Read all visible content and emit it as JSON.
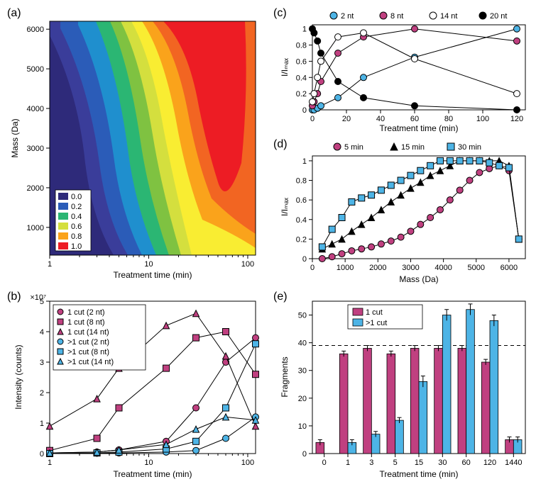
{
  "panel_a": {
    "label": "(a)",
    "type": "heatmap",
    "xlabel": "Treatment time (min)",
    "ylabel": "Mass (Da)",
    "xscale": "log",
    "xlim": [
      1,
      120
    ],
    "ylim": [
      300,
      6200
    ],
    "xticks": [
      1,
      10,
      100
    ],
    "yticks": [
      1000,
      2000,
      3000,
      4000,
      5000,
      6000
    ],
    "colorbar_values": [
      "0.0",
      "0.2",
      "0.4",
      "0.6",
      "0.8",
      "1.0"
    ],
    "colors": [
      "#2e2a7a",
      "#3a3d9a",
      "#2b5cb8",
      "#1f8fce",
      "#2bb673",
      "#7fc241",
      "#d4df3e",
      "#f9ed32",
      "#faa31b",
      "#f26522",
      "#ed1c24"
    ]
  },
  "panel_b": {
    "label": "(b)",
    "type": "line",
    "xlabel": "Treatment time (min)",
    "ylabel": "Intensity (counts)",
    "ymultiplier": "×10⁷",
    "xscale": "log",
    "xlim": [
      1,
      120
    ],
    "ylim": [
      0,
      5
    ],
    "xticks": [
      1,
      10,
      100
    ],
    "yticks": [
      0,
      1,
      2,
      3,
      4,
      5
    ],
    "series": [
      {
        "label": "1 cut (2 nt)",
        "marker": "circle",
        "fill": "#c04080",
        "x": [
          1,
          3,
          5,
          15,
          30,
          60,
          120
        ],
        "y": [
          0.02,
          0.05,
          0.12,
          0.4,
          1.5,
          3.0,
          3.8
        ]
      },
      {
        "label": "1 cut (8 nt)",
        "marker": "square",
        "fill": "#c04080",
        "x": [
          1,
          3,
          5,
          15,
          30,
          60,
          120
        ],
        "y": [
          0.1,
          0.5,
          1.5,
          2.8,
          3.8,
          4.0,
          2.6
        ]
      },
      {
        "label": "1 cut (14 nt)",
        "marker": "triangle",
        "fill": "#c04080",
        "x": [
          1,
          3,
          5,
          15,
          30,
          60,
          120
        ],
        "y": [
          0.9,
          1.8,
          2.8,
          4.2,
          4.6,
          3.2,
          0.9
        ]
      },
      {
        "label": ">1 cut (2 nt)",
        "marker": "circle",
        "fill": "#4db4e6",
        "x": [
          1,
          3,
          5,
          15,
          30,
          60,
          120
        ],
        "y": [
          0.0,
          0.01,
          0.02,
          0.05,
          0.1,
          0.5,
          1.2
        ]
      },
      {
        "label": ">1 cut (8 nt)",
        "marker": "square",
        "fill": "#4db4e6",
        "x": [
          1,
          3,
          5,
          15,
          30,
          60,
          120
        ],
        "y": [
          0.0,
          0.02,
          0.05,
          0.15,
          0.4,
          1.5,
          3.6
        ]
      },
      {
        "label": ">1 cut (14 nt)",
        "marker": "triangle",
        "fill": "#4db4e6",
        "x": [
          1,
          3,
          5,
          15,
          30,
          60,
          120
        ],
        "y": [
          0.02,
          0.05,
          0.12,
          0.3,
          0.8,
          1.2,
          1.1
        ]
      }
    ]
  },
  "panel_c": {
    "label": "(c)",
    "type": "line",
    "xlabel": "Treatment time (min)",
    "ylabel": "I/Iₘₐₓ",
    "xlim": [
      0,
      125
    ],
    "ylim": [
      0,
      1.05
    ],
    "xticks": [
      0,
      20,
      40,
      60,
      80,
      100,
      120
    ],
    "yticks": [
      0,
      0.2,
      0.4,
      0.6,
      0.8,
      1
    ],
    "series": [
      {
        "label": "2 nt",
        "marker": "circle",
        "fill": "#4db4e6",
        "stroke": "#000",
        "x": [
          0,
          1,
          3,
          5,
          15,
          30,
          60,
          120
        ],
        "y": [
          0.0,
          0.0,
          0.02,
          0.05,
          0.15,
          0.4,
          0.65,
          1.0
        ]
      },
      {
        "label": "8 nt",
        "marker": "circle",
        "fill": "#c04080",
        "stroke": "#000",
        "x": [
          0,
          1,
          3,
          5,
          15,
          30,
          60,
          120
        ],
        "y": [
          0.05,
          0.1,
          0.2,
          0.35,
          0.7,
          0.9,
          1.0,
          0.85
        ]
      },
      {
        "label": "14 nt",
        "marker": "circle",
        "fill": "#ffffff",
        "stroke": "#000",
        "x": [
          0,
          1,
          3,
          5,
          15,
          30,
          60,
          120
        ],
        "y": [
          0.1,
          0.2,
          0.4,
          0.6,
          0.9,
          0.95,
          0.63,
          0.2
        ]
      },
      {
        "label": "20 nt",
        "marker": "circle",
        "fill": "#000000",
        "stroke": "#000",
        "x": [
          0,
          1,
          3,
          5,
          15,
          30,
          60,
          120
        ],
        "y": [
          1.0,
          0.95,
          0.85,
          0.7,
          0.35,
          0.15,
          0.05,
          0.0
        ]
      }
    ]
  },
  "panel_d": {
    "label": "(d)",
    "type": "line",
    "xlabel": "Mass (Da)",
    "ylabel": "I/Iₘₐₓ",
    "xlim": [
      0,
      6500
    ],
    "ylim": [
      0,
      1.05
    ],
    "xticks": [
      0,
      1000,
      2000,
      3000,
      4000,
      5000,
      6000
    ],
    "yticks": [
      0,
      0.2,
      0.4,
      0.6,
      0.8,
      1
    ],
    "series": [
      {
        "label": "5 min",
        "marker": "circle",
        "fill": "#c04080",
        "x": [
          300,
          600,
          900,
          1200,
          1500,
          1800,
          2100,
          2400,
          2700,
          3000,
          3300,
          3600,
          3900,
          4200,
          4500,
          4800,
          5100,
          5400,
          5700,
          6000,
          6300
        ],
        "y": [
          0.0,
          0.02,
          0.05,
          0.08,
          0.1,
          0.12,
          0.15,
          0.18,
          0.22,
          0.28,
          0.35,
          0.42,
          0.5,
          0.6,
          0.7,
          0.8,
          0.88,
          0.92,
          0.95,
          0.9,
          0.2
        ]
      },
      {
        "label": "15 min",
        "marker": "triangle",
        "fill": "#000000",
        "x": [
          300,
          600,
          900,
          1200,
          1500,
          1800,
          2100,
          2400,
          2700,
          3000,
          3300,
          3600,
          3900,
          4200,
          4500,
          4800,
          5100,
          5400,
          5700,
          6000,
          6300
        ],
        "y": [
          0.1,
          0.15,
          0.2,
          0.28,
          0.35,
          0.42,
          0.5,
          0.58,
          0.65,
          0.72,
          0.78,
          0.85,
          0.9,
          0.95,
          1.0,
          1.0,
          1.0,
          1.0,
          1.0,
          0.95,
          0.2
        ]
      },
      {
        "label": "30 min",
        "marker": "square",
        "fill": "#4db4e6",
        "x": [
          300,
          600,
          900,
          1200,
          1500,
          1800,
          2100,
          2400,
          2700,
          3000,
          3300,
          3600,
          3900,
          4200,
          4500,
          4800,
          5100,
          5400,
          5700,
          6000,
          6300
        ],
        "y": [
          0.12,
          0.3,
          0.42,
          0.58,
          0.62,
          0.65,
          0.7,
          0.75,
          0.8,
          0.85,
          0.9,
          0.95,
          1.0,
          1.0,
          1.0,
          1.0,
          1.0,
          0.98,
          0.95,
          0.93,
          0.2
        ]
      }
    ]
  },
  "panel_e": {
    "label": "(e)",
    "type": "bar",
    "xlabel": "Treatment time (min)",
    "ylabel": "Fragments",
    "categories": [
      "0",
      "1",
      "3",
      "5",
      "15",
      "30",
      "60",
      "120",
      "1440"
    ],
    "ylim": [
      0,
      55
    ],
    "yticks": [
      0,
      10,
      20,
      30,
      40,
      50
    ],
    "dashed_line_y": 39,
    "series": [
      {
        "label": "1 cut",
        "color": "#c04080",
        "values": [
          4,
          36,
          38,
          36,
          38,
          38,
          38,
          33,
          5
        ],
        "err": [
          1,
          1,
          1,
          1,
          1,
          1,
          1,
          1,
          1
        ]
      },
      {
        "label": ">1 cut",
        "color": "#4db4e6",
        "values": [
          0,
          4,
          7,
          12,
          26,
          50,
          52,
          48,
          5
        ],
        "err": [
          0,
          1,
          1,
          1,
          2,
          2,
          2,
          2,
          1
        ]
      }
    ]
  },
  "colors": {
    "magenta": "#c04080",
    "cyan": "#4db4e6",
    "black": "#000000",
    "white": "#ffffff"
  },
  "label_fontsize": 11,
  "title_fontsize": 12,
  "panel_label_fontsize": 16
}
